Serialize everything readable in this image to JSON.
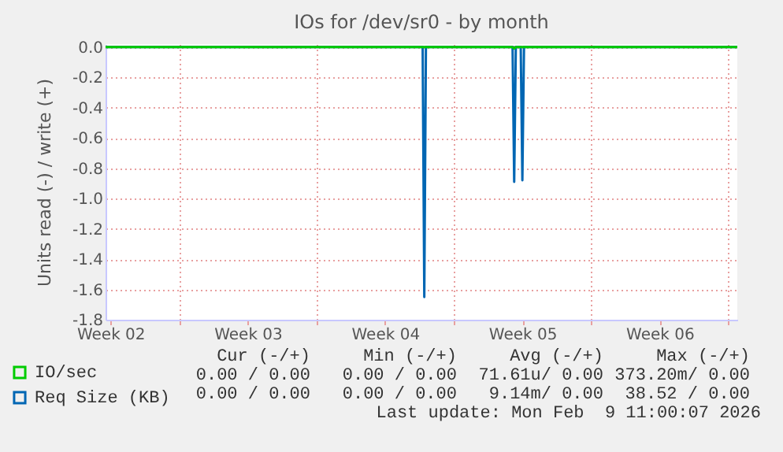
{
  "chart_data": {
    "type": "line",
    "title": "IOs for /dev/sr0 - by month",
    "ylabel": "Units read (-) / write (+)",
    "series": [
      {
        "name": "IO/sec",
        "color": "#00cc00",
        "x": [
          "2026-01-08T06:00",
          "2026-01-29T00:00",
          "2026-01-29T02:00",
          "2026-01-29T04:00",
          "2026-02-09T11:00"
        ],
        "values": [
          0,
          0,
          -0.01,
          0,
          0
        ]
      },
      {
        "name": "Req Size (KB)",
        "color": "#0066b3",
        "x": [
          "2026-01-08T06:00",
          "2026-01-24T10:00",
          "2026-01-24T12:00",
          "2026-01-24T14:00",
          "2026-01-29T00:00",
          "2026-01-29T02:00",
          "2026-01-29T04:00",
          "2026-01-29T10:00",
          "2026-01-29T12:00",
          "2026-01-29T14:00",
          "2026-02-09T11:00"
        ],
        "values": [
          0,
          0,
          -1.65,
          0,
          0,
          -0.89,
          0,
          0,
          -0.88,
          0,
          0
        ]
      }
    ],
    "xlim": [
      "2026-01-08T06:00",
      "2026-02-09T11:00"
    ],
    "xticks": [
      {
        "value": "2026-01-08T12:00",
        "label": "Week 02"
      },
      {
        "value": "2026-01-15T12:00",
        "label": "Week 03"
      },
      {
        "value": "2026-01-22T12:00",
        "label": "Week 04"
      },
      {
        "value": "2026-01-29T12:00",
        "label": "Week 05"
      },
      {
        "value": "2026-02-05T12:00",
        "label": "Week 06"
      },
      {
        "value": "2026-01-12T00:00",
        "label": null
      },
      {
        "value": "2026-01-19T00:00",
        "label": null
      },
      {
        "value": "2026-01-26T00:00",
        "label": null
      },
      {
        "value": "2026-02-02T00:00",
        "label": null
      },
      {
        "value": "2026-02-09T00:00",
        "label": null
      }
    ],
    "ylim": [
      -1.8,
      0.02
    ],
    "yticks": [
      {
        "value": 0,
        "label": "0.0"
      },
      -0.2,
      -0.4,
      -0.6,
      -0.8,
      {
        "value": -1,
        "label": "-1.0"
      },
      -1.2,
      -1.4,
      -1.6,
      -1.8
    ],
    "ref_lines": [
      {
        "axis": "y",
        "value": 0,
        "color": "#000000"
      }
    ],
    "grid": true,
    "legend": "bottom",
    "line_style": "solid",
    "annotations": [
      "Cur (-/+)",
      "Min (-/+)",
      "Avg (-/+)",
      "Max (-/+)",
      "0.00 / 0.00",
      "0.00 / 0.00",
      "71.61u/ 0.00",
      "373.20m/ 0.00",
      "0.00 / 0.00",
      "0.00 / 0.00",
      "9.14m/ 0.00",
      "38.52 / 0.00",
      "Last update: Mon Feb  9 11:00:07 2026"
    ]
  }
}
